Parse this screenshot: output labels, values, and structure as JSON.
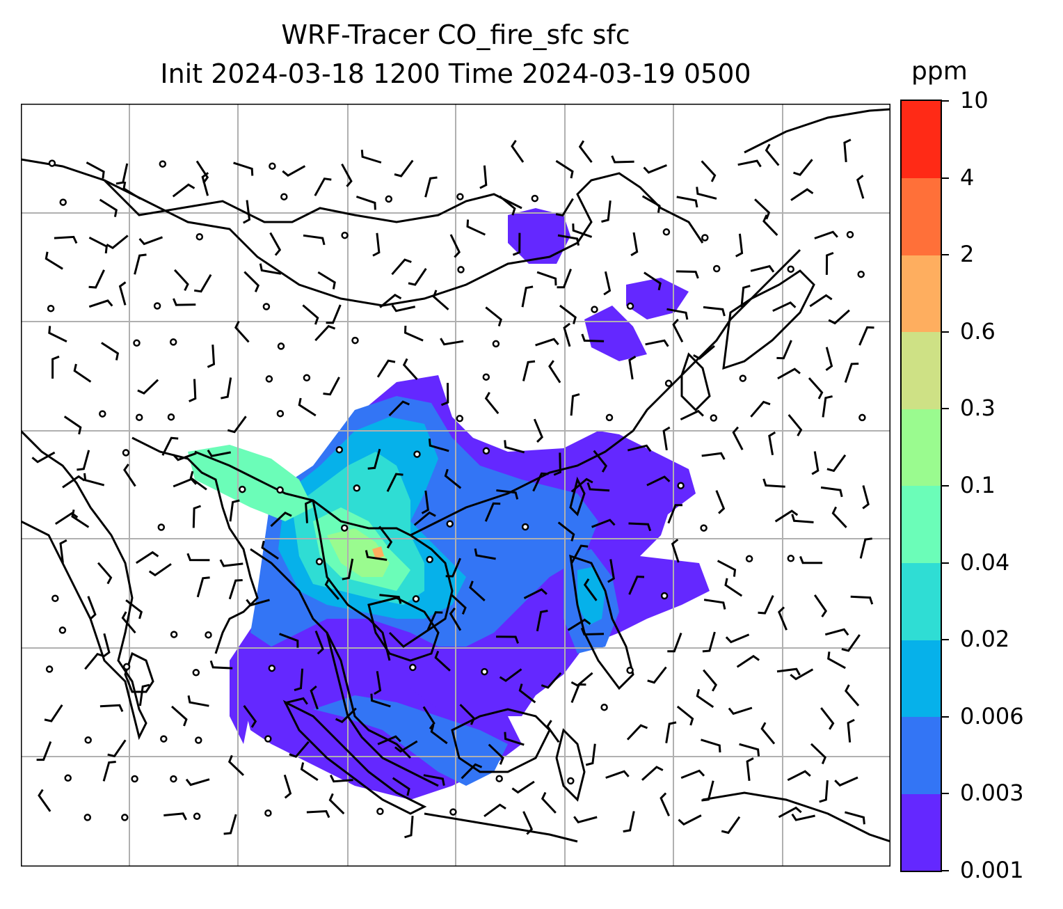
{
  "title_line1": "WRF-Tracer CO_fire_sfc sfc",
  "title_line2": "Init 2024-03-18 1200 Time 2024-03-19 0500",
  "colorbar": {
    "unit": "ppm",
    "levels": [
      "0.001",
      "0.003",
      "0.006",
      "0.02",
      "0.04",
      "0.1",
      "0.3",
      "0.6",
      "2",
      "4",
      "10"
    ],
    "colors": [
      "#6428ff",
      "#3375f5",
      "#06b1ea",
      "#2fddd4",
      "#6bfdb8",
      "#9afb8f",
      "#cee185",
      "#feae5f",
      "#ff7039",
      "#ff2a16"
    ]
  },
  "map": {
    "grid_lines": true,
    "features": [
      "coastlines",
      "country-borders",
      "wind-barbs",
      "calm-wind-circles"
    ],
    "colors": {
      "coast": "#000000",
      "grid": "#b0b0b0"
    }
  }
}
